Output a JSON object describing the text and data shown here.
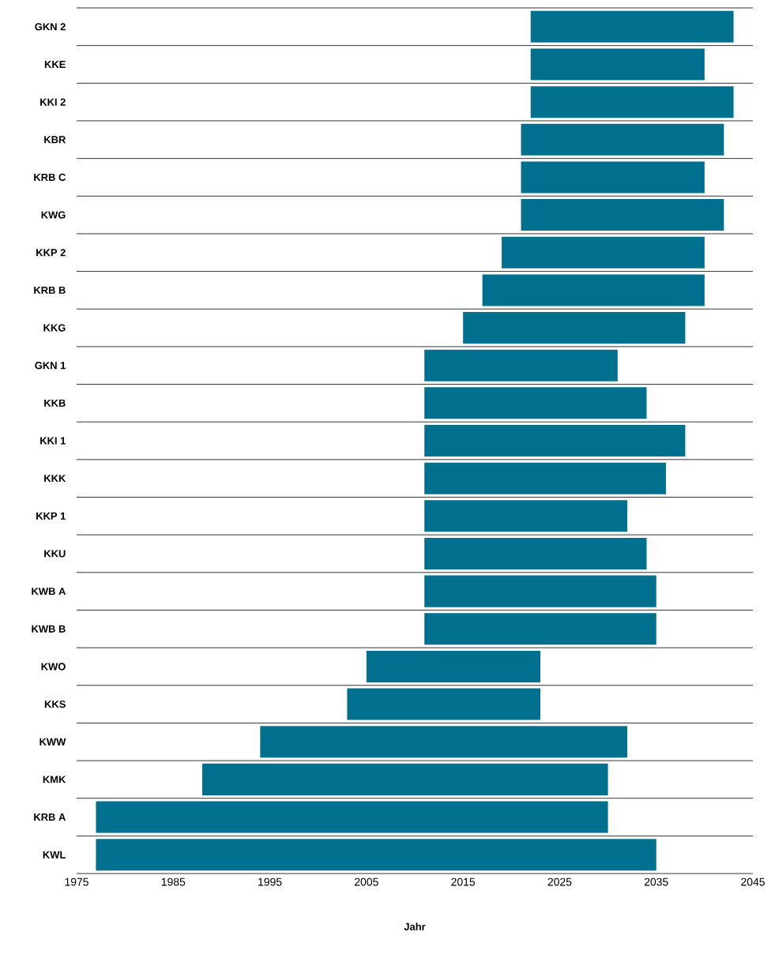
{
  "chart_data": {
    "type": "bar",
    "orientation": "horizontal",
    "xlabel": "Jahr",
    "categories": [
      "GKN 2",
      "KKE",
      "KKI 2",
      "KBR",
      "KRB C",
      "KWG",
      "KKP 2",
      "KRB B",
      "KKG",
      "GKN 1",
      "KKB",
      "KKI 1",
      "KKK",
      "KKP 1",
      "KKU",
      "KWB A",
      "KWB B",
      "KWO",
      "KKS",
      "KWW",
      "KMK",
      "KRB A",
      "KWL"
    ],
    "base": [
      2022,
      2022,
      2022,
      2021,
      2021,
      2021,
      2019,
      2017,
      2015,
      2011,
      2011,
      2011,
      2011,
      2011,
      2011,
      2011,
      2011,
      2005,
      2003,
      1994,
      1988,
      1977,
      1977
    ],
    "values": [
      21,
      18,
      21,
      21,
      19,
      21,
      21,
      23,
      23,
      20,
      23,
      27,
      25,
      21,
      23,
      24,
      24,
      18,
      20,
      38,
      42,
      53,
      58
    ],
    "color": "#00708f",
    "xlim": [
      1975,
      2045
    ],
    "xticks": [
      1975,
      1985,
      1995,
      2005,
      2015,
      2025,
      2035,
      2045
    ],
    "grid": "y"
  }
}
